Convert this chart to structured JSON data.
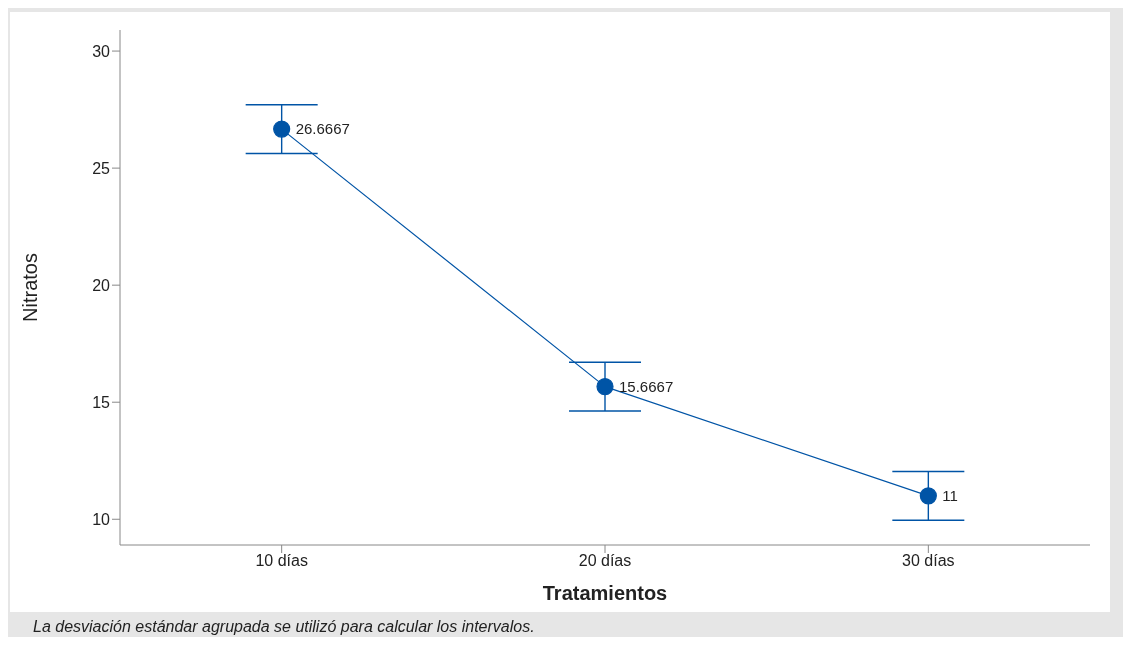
{
  "chart_data": {
    "type": "line",
    "xlabel": "Tratamientos",
    "ylabel": "Nitratos",
    "categories": [
      "10 días",
      "20 días",
      "30 días"
    ],
    "series": [
      {
        "color": "#0054a6",
        "values": [
          26.6667,
          15.6667,
          11
        ],
        "errors": [
          1.04,
          1.04,
          1.04
        ]
      }
    ],
    "ylim": [
      8.9,
      30.9
    ],
    "yticks": [
      10,
      15,
      20,
      25,
      30
    ],
    "data_labels": true,
    "marker": "circle",
    "line_style": "solid",
    "annotations": [
      "La desviación estándar agrupada se utilizó para calcular los intervalos."
    ]
  }
}
